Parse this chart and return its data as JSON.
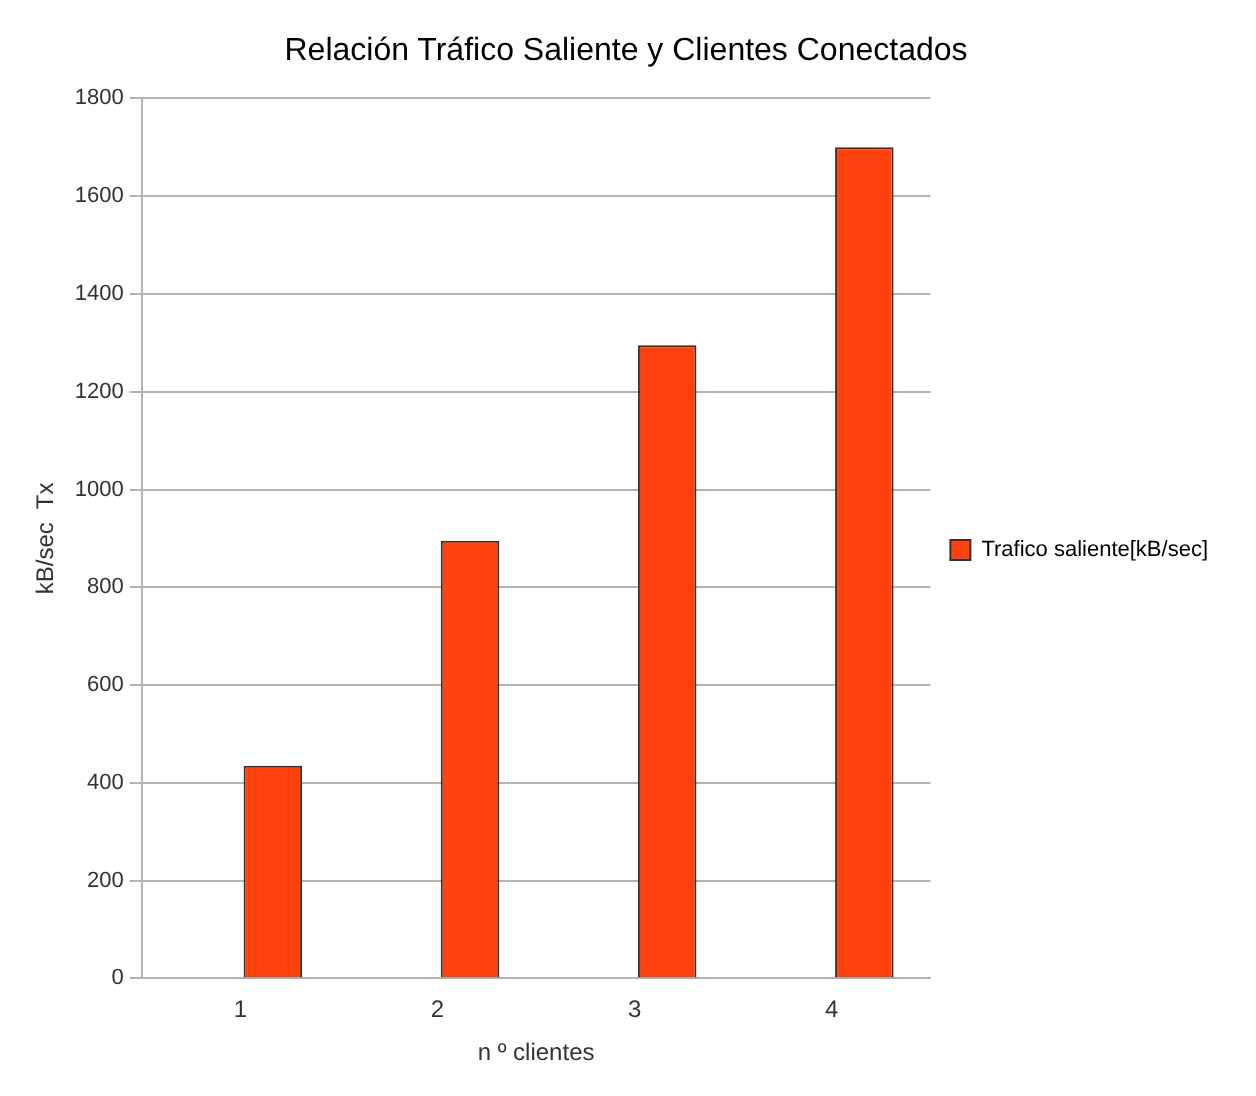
{
  "chart_data": {
    "type": "bar",
    "title": "Relación Tráfico Saliente y Clientes Conectados",
    "xlabel": "n º clientes",
    "ylabel": "kB/sec  Tx",
    "categories": [
      "1",
      "2",
      "3",
      "4"
    ],
    "series": [
      {
        "color": "#000000",
        "values": [
          null,
          null,
          null,
          null
        ]
      },
      {
        "name": "Trafico saliente[kB/sec]",
        "color": "#ff420e",
        "values": [
          435,
          895,
          1295,
          1700
        ]
      }
    ],
    "ylim": [
      0,
      1800
    ],
    "yticks": [
      0,
      200,
      400,
      600,
      800,
      1000,
      1200,
      1400,
      1600,
      1800
    ],
    "grid": "y",
    "legend": "right"
  }
}
